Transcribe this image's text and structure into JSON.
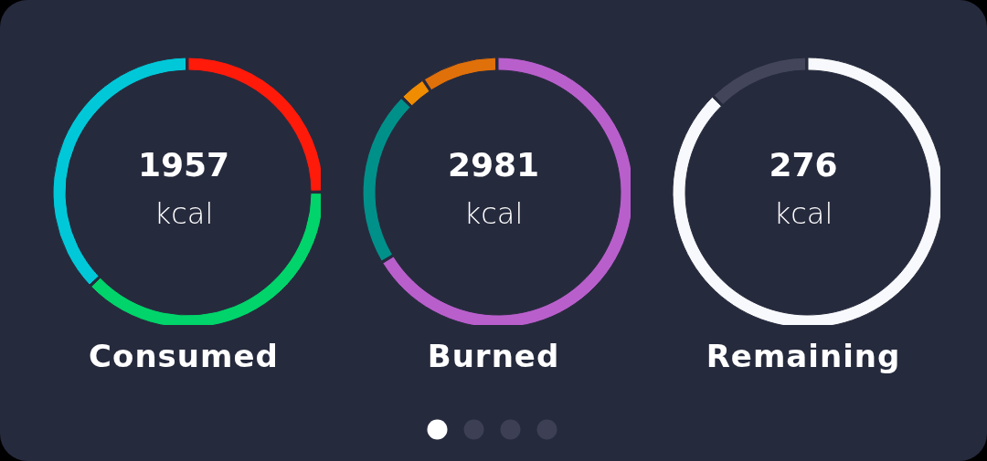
{
  "chart_data": [
    {
      "type": "donut",
      "title": "Consumed",
      "annotations": [
        "1957",
        "kcal"
      ],
      "categories": [
        null,
        null,
        null
      ],
      "values": [
        25,
        38,
        37
      ],
      "colors": [
        "#ff1a0a",
        "#00d46a",
        "#00c8d8"
      ]
    },
    {
      "type": "donut",
      "title": "Burned",
      "annotations": [
        "2981",
        "kcal"
      ],
      "categories": [
        null,
        null,
        null,
        null
      ],
      "values": [
        67,
        21,
        3,
        9
      ],
      "colors": [
        "#b95fcc",
        "#00908a",
        "#f08c00",
        "#e0700a"
      ]
    },
    {
      "type": "donut",
      "title": "Remaining",
      "annotations": [
        "276",
        "kcal"
      ],
      "categories": [
        null,
        null
      ],
      "values": [
        88,
        12
      ],
      "colors": [
        "#f8f9fc",
        "#43465a"
      ]
    }
  ]
}
